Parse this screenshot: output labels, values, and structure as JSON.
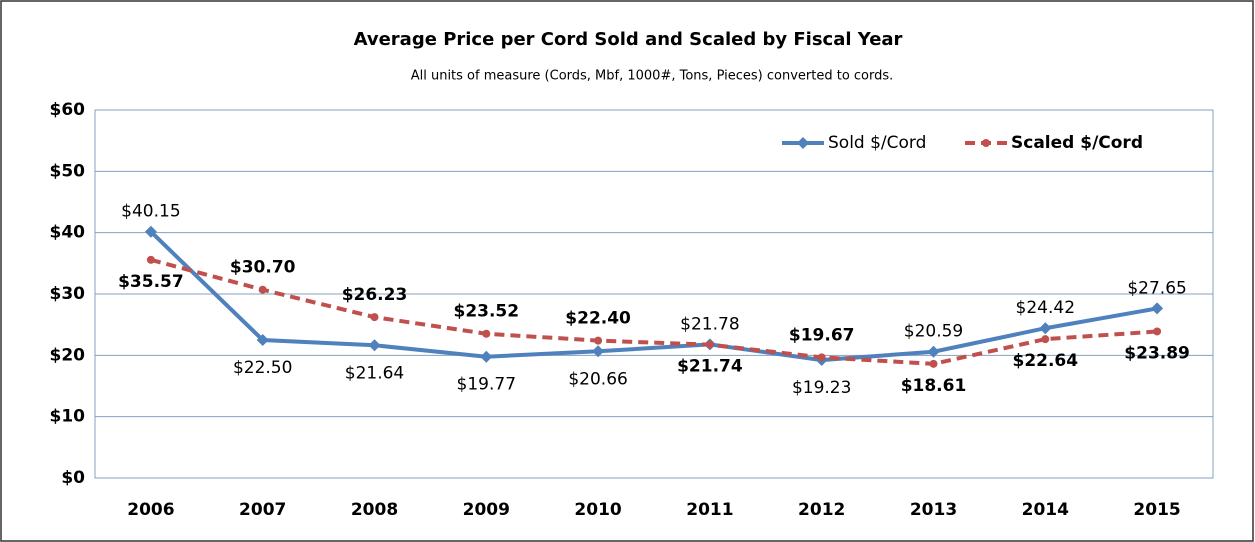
{
  "chart_data": {
    "type": "line",
    "title": "Average Price per Cord Sold and Scaled by Fiscal Year",
    "subtitle": "All units of measure (Cords, Mbf, 1000#, Tons, Pieces) converted to cords.",
    "categories": [
      "2006",
      "2007",
      "2008",
      "2009",
      "2010",
      "2011",
      "2012",
      "2013",
      "2014",
      "2015"
    ],
    "ylim": [
      0,
      60
    ],
    "yticks": [
      {
        "value": 0,
        "label": "$0"
      },
      {
        "value": 10,
        "label": "$10"
      },
      {
        "value": 20,
        "label": "$20"
      },
      {
        "value": 30,
        "label": "$30"
      },
      {
        "value": 40,
        "label": "$40"
      },
      {
        "value": 50,
        "label": "$50"
      },
      {
        "value": 60,
        "label": "$60"
      }
    ],
    "grid": true,
    "legend": "top-right",
    "series": [
      {
        "name": "Sold $/Cord",
        "color": "#4f81bd",
        "values": [
          40.15,
          22.5,
          21.64,
          19.77,
          20.66,
          21.78,
          19.23,
          20.59,
          24.42,
          27.65
        ],
        "value_labels": [
          "$40.15",
          "$22.50",
          "$21.64",
          "$19.77",
          "$20.66",
          "$21.78",
          "$19.23",
          "$20.59",
          "$24.42",
          "$27.65"
        ]
      },
      {
        "name": "Scaled $/Cord",
        "color": "#c0504d",
        "values": [
          35.57,
          30.7,
          26.23,
          23.52,
          22.4,
          21.74,
          19.67,
          18.61,
          22.64,
          23.89
        ],
        "value_labels": [
          "$35.57",
          "$30.70",
          "$26.23",
          "$23.52",
          "$22.40",
          "$21.74",
          "$19.67",
          "$18.61",
          "$22.64",
          "$23.89"
        ]
      }
    ]
  }
}
